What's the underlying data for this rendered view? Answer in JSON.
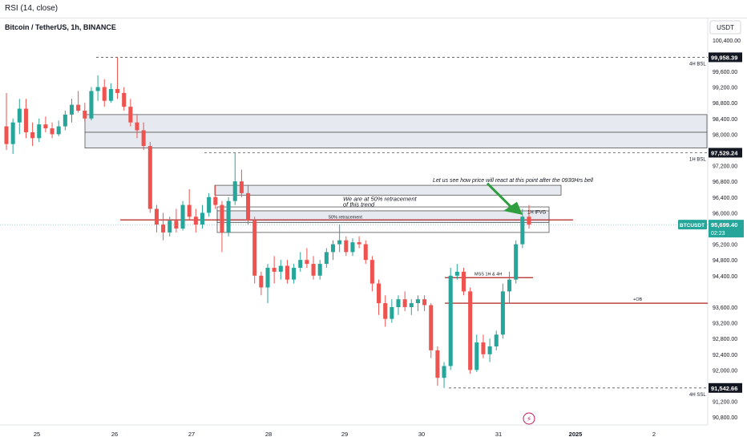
{
  "indicator_bar": {
    "label": "RSI (14, close)"
  },
  "chart_header": {
    "symbol": "Bitcoin / TetherUS, 1h, BINANCE",
    "currency": "USDT"
  },
  "colors": {
    "up": "#26a69a",
    "down": "#ef5350",
    "zone_fill": "#e0e3eb",
    "zone_stroke": "#555555",
    "level_line": "#b22222",
    "arrow": "#2e9e3e",
    "price_label_bg": "#26a69a",
    "dark_label_bg": "#131722",
    "lightning": "#c2185b"
  },
  "price_axis": {
    "ticks": [
      "100,400.00",
      "99,600.00",
      "99,200.00",
      "98,800.00",
      "98,400.00",
      "98,000.00",
      "97,200.00",
      "96,800.00",
      "96,400.00",
      "96,000.00",
      "95,200.00",
      "94,800.00",
      "94,400.00",
      "93,600.00",
      "93,200.00",
      "92,800.00",
      "92,400.00",
      "92,000.00",
      "91,200.00",
      "90,800.00"
    ]
  },
  "time_axis": {
    "ticks": [
      "25",
      "26",
      "27",
      "28",
      "29",
      "30",
      "31",
      "2025",
      "2"
    ]
  },
  "markers": {
    "high_label": "99,958.39",
    "bsl_label": "97,529.24",
    "low_label": "91,542.66",
    "current_symbol": "BTCUSDT",
    "current_price": "95,699.40",
    "countdown": "02:23"
  },
  "annotations": {
    "bsl_4h": "4H BSL",
    "bsl_1h": "1H BSL",
    "ssl_4h": "4H SSL",
    "note_bell": "Let us see how price will react at this point after the 0930Hrs bell",
    "note_retrace_1": "We are at 50% retracement",
    "note_retrace_2": "of this trend",
    "retrace_label": "50% retracement",
    "ifvg": "1H IFVG",
    "mss": "MSS 1H & 4H",
    "ob": "+OB"
  },
  "chart_data": {
    "type": "candlestick",
    "symbol": "BTCUSDT",
    "timeframe": "1h",
    "exchange": "BINANCE",
    "x_labels": [
      "25",
      "26",
      "27",
      "28",
      "29",
      "30",
      "31",
      "2025",
      "2"
    ],
    "y_range": [
      90600,
      100600
    ],
    "levels": {
      "high": 99958.39,
      "buy_side_1h": 97529.24,
      "low": 91542.66,
      "current": 95699.4,
      "ob": 93700,
      "mss": 94350
    },
    "candles": [
      {
        "o": 98200,
        "h": 99050,
        "l": 97600,
        "c": 97750
      },
      {
        "o": 97750,
        "h": 98400,
        "l": 97500,
        "c": 98300
      },
      {
        "o": 98300,
        "h": 98900,
        "l": 98000,
        "c": 98650
      },
      {
        "o": 98650,
        "h": 98900,
        "l": 97900,
        "c": 98050
      },
      {
        "o": 98050,
        "h": 98300,
        "l": 97700,
        "c": 97900
      },
      {
        "o": 97900,
        "h": 98400,
        "l": 97800,
        "c": 98250
      },
      {
        "o": 98250,
        "h": 98450,
        "l": 98050,
        "c": 98150
      },
      {
        "o": 98150,
        "h": 98300,
        "l": 97900,
        "c": 98000
      },
      {
        "o": 98000,
        "h": 98350,
        "l": 97950,
        "c": 98200
      },
      {
        "o": 98200,
        "h": 98600,
        "l": 98100,
        "c": 98500
      },
      {
        "o": 98500,
        "h": 98900,
        "l": 98300,
        "c": 98750
      },
      {
        "o": 98750,
        "h": 99100,
        "l": 98550,
        "c": 98600
      },
      {
        "o": 98600,
        "h": 98800,
        "l": 98300,
        "c": 98400
      },
      {
        "o": 98400,
        "h": 99200,
        "l": 98350,
        "c": 99100
      },
      {
        "o": 99100,
        "h": 99500,
        "l": 98850,
        "c": 99200
      },
      {
        "o": 99200,
        "h": 99400,
        "l": 98700,
        "c": 98850
      },
      {
        "o": 98850,
        "h": 99300,
        "l": 98800,
        "c": 99150
      },
      {
        "o": 99150,
        "h": 99958,
        "l": 98900,
        "c": 99050
      },
      {
        "o": 99050,
        "h": 99200,
        "l": 98600,
        "c": 98700
      },
      {
        "o": 98700,
        "h": 98900,
        "l": 98200,
        "c": 98300
      },
      {
        "o": 98300,
        "h": 98500,
        "l": 97900,
        "c": 98100
      },
      {
        "o": 98100,
        "h": 98300,
        "l": 97600,
        "c": 97700
      },
      {
        "o": 97700,
        "h": 97800,
        "l": 96000,
        "c": 96100
      },
      {
        "o": 96100,
        "h": 96200,
        "l": 95500,
        "c": 95700
      },
      {
        "o": 95700,
        "h": 96000,
        "l": 95300,
        "c": 95500
      },
      {
        "o": 95500,
        "h": 95900,
        "l": 95400,
        "c": 95800
      },
      {
        "o": 95800,
        "h": 96100,
        "l": 95500,
        "c": 95600
      },
      {
        "o": 95600,
        "h": 96300,
        "l": 95550,
        "c": 96200
      },
      {
        "o": 96200,
        "h": 96600,
        "l": 95800,
        "c": 95900
      },
      {
        "o": 95900,
        "h": 96100,
        "l": 95500,
        "c": 95700
      },
      {
        "o": 95700,
        "h": 96200,
        "l": 95600,
        "c": 96000
      },
      {
        "o": 96000,
        "h": 96500,
        "l": 95900,
        "c": 96400
      },
      {
        "o": 96400,
        "h": 96700,
        "l": 96100,
        "c": 96200
      },
      {
        "o": 96200,
        "h": 96300,
        "l": 95000,
        "c": 95500
      },
      {
        "o": 95500,
        "h": 96400,
        "l": 95400,
        "c": 96300
      },
      {
        "o": 96300,
        "h": 97530,
        "l": 96200,
        "c": 96800
      },
      {
        "o": 96800,
        "h": 97100,
        "l": 96400,
        "c": 96500
      },
      {
        "o": 96500,
        "h": 96700,
        "l": 95700,
        "c": 95800
      },
      {
        "o": 95800,
        "h": 95900,
        "l": 94200,
        "c": 94400
      },
      {
        "o": 94400,
        "h": 94500,
        "l": 93900,
        "c": 94100
      },
      {
        "o": 94100,
        "h": 94700,
        "l": 93700,
        "c": 94600
      },
      {
        "o": 94600,
        "h": 94900,
        "l": 94200,
        "c": 94500
      },
      {
        "o": 94500,
        "h": 94800,
        "l": 94300,
        "c": 94650
      },
      {
        "o": 94650,
        "h": 94800,
        "l": 94200,
        "c": 94300
      },
      {
        "o": 94300,
        "h": 94700,
        "l": 94200,
        "c": 94600
      },
      {
        "o": 94600,
        "h": 95000,
        "l": 94500,
        "c": 94800
      },
      {
        "o": 94800,
        "h": 95100,
        "l": 94600,
        "c": 94700
      },
      {
        "o": 94700,
        "h": 94900,
        "l": 94300,
        "c": 94400
      },
      {
        "o": 94400,
        "h": 94800,
        "l": 94300,
        "c": 94700
      },
      {
        "o": 94700,
        "h": 95100,
        "l": 94600,
        "c": 95000
      },
      {
        "o": 95000,
        "h": 95300,
        "l": 94800,
        "c": 95200
      },
      {
        "o": 95200,
        "h": 95700,
        "l": 95000,
        "c": 95300
      },
      {
        "o": 95300,
        "h": 95400,
        "l": 94900,
        "c": 95000
      },
      {
        "o": 95000,
        "h": 95350,
        "l": 94900,
        "c": 95250
      },
      {
        "o": 95250,
        "h": 95400,
        "l": 95100,
        "c": 95200
      },
      {
        "o": 95200,
        "h": 95300,
        "l": 94700,
        "c": 94800
      },
      {
        "o": 94800,
        "h": 94900,
        "l": 94000,
        "c": 94200
      },
      {
        "o": 94200,
        "h": 94300,
        "l": 93400,
        "c": 93700
      },
      {
        "o": 93700,
        "h": 93900,
        "l": 93100,
        "c": 93300
      },
      {
        "o": 93300,
        "h": 93800,
        "l": 93200,
        "c": 93600
      },
      {
        "o": 93600,
        "h": 93900,
        "l": 93400,
        "c": 93800
      },
      {
        "o": 93800,
        "h": 94000,
        "l": 93500,
        "c": 93600
      },
      {
        "o": 93600,
        "h": 93800,
        "l": 93400,
        "c": 93700
      },
      {
        "o": 93700,
        "h": 93900,
        "l": 93500,
        "c": 93800
      },
      {
        "o": 93800,
        "h": 93900,
        "l": 93500,
        "c": 93650
      },
      {
        "o": 93650,
        "h": 93700,
        "l": 92300,
        "c": 92500
      },
      {
        "o": 92500,
        "h": 92600,
        "l": 91600,
        "c": 91800
      },
      {
        "o": 91800,
        "h": 92200,
        "l": 91542,
        "c": 92100
      },
      {
        "o": 92100,
        "h": 94600,
        "l": 92000,
        "c": 94400
      },
      {
        "o": 94400,
        "h": 94700,
        "l": 94300,
        "c": 94500
      },
      {
        "o": 94500,
        "h": 94600,
        "l": 93900,
        "c": 94000
      },
      {
        "o": 94000,
        "h": 94100,
        "l": 91900,
        "c": 92000
      },
      {
        "o": 92000,
        "h": 92900,
        "l": 91950,
        "c": 92700
      },
      {
        "o": 92700,
        "h": 92900,
        "l": 92300,
        "c": 92400
      },
      {
        "o": 92400,
        "h": 92800,
        "l": 92200,
        "c": 92600
      },
      {
        "o": 92600,
        "h": 93000,
        "l": 92500,
        "c": 92900
      },
      {
        "o": 92900,
        "h": 94200,
        "l": 92800,
        "c": 94000
      },
      {
        "o": 94000,
        "h": 94500,
        "l": 93700,
        "c": 94300
      },
      {
        "o": 94300,
        "h": 95300,
        "l": 94200,
        "c": 95200
      },
      {
        "o": 95200,
        "h": 96100,
        "l": 95100,
        "c": 95900
      },
      {
        "o": 95900,
        "h": 96200,
        "l": 95600,
        "c": 95699
      }
    ]
  }
}
